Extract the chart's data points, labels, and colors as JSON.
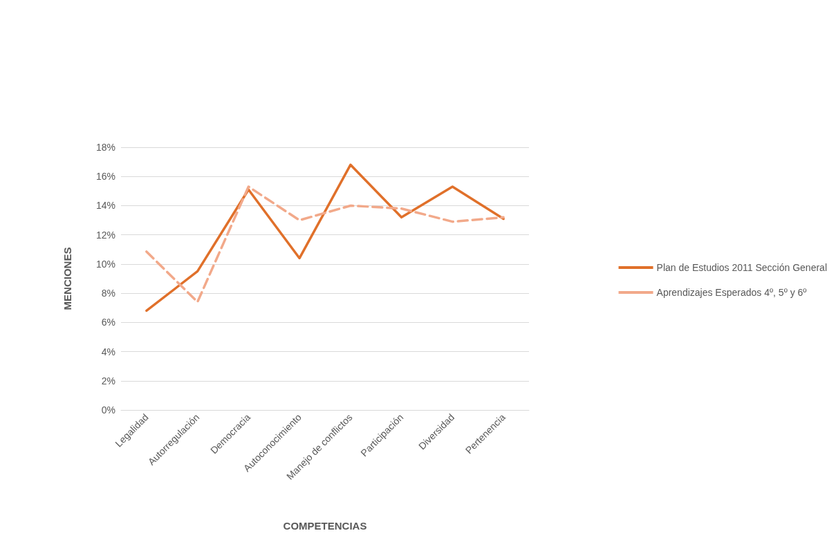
{
  "chart_data": {
    "type": "line",
    "xlabel": "COMPETENCIAS",
    "ylabel": "MENCIONES",
    "categories": [
      "Legalidad",
      "Autorregulación",
      "Democracia",
      "Autoconocimiento",
      "Manejo de conflictos",
      "Participación",
      "Diversidad",
      "Pertenencia"
    ],
    "series": [
      {
        "name": "Plan de Estudios 2011 Sección General",
        "color": "#e0702a",
        "line_style": "solid",
        "values": [
          6.8,
          9.5,
          15.1,
          10.4,
          16.8,
          13.2,
          15.3,
          13.1
        ]
      },
      {
        "name": "Aprendizajes Esperados 4º, 5º y 6º",
        "color": "#f2a98a",
        "line_style": "dashed",
        "values": [
          10.85,
          7.4,
          15.3,
          13.0,
          14.0,
          13.8,
          12.9,
          13.2
        ]
      }
    ],
    "ylim": [
      0,
      18
    ],
    "yticks": [
      {
        "value": 0,
        "label": "0%"
      },
      {
        "value": 2,
        "label": "2%"
      },
      {
        "value": 4,
        "label": "4%"
      },
      {
        "value": 6,
        "label": "6%"
      },
      {
        "value": 8,
        "label": "8%"
      },
      {
        "value": 10,
        "label": "10%"
      },
      {
        "value": 12,
        "label": "12%"
      },
      {
        "value": 14,
        "label": "14%"
      },
      {
        "value": 16,
        "label": "16%"
      },
      {
        "value": 18,
        "label": "18%"
      }
    ],
    "grid": "y",
    "legend": "right",
    "marker": "none"
  }
}
